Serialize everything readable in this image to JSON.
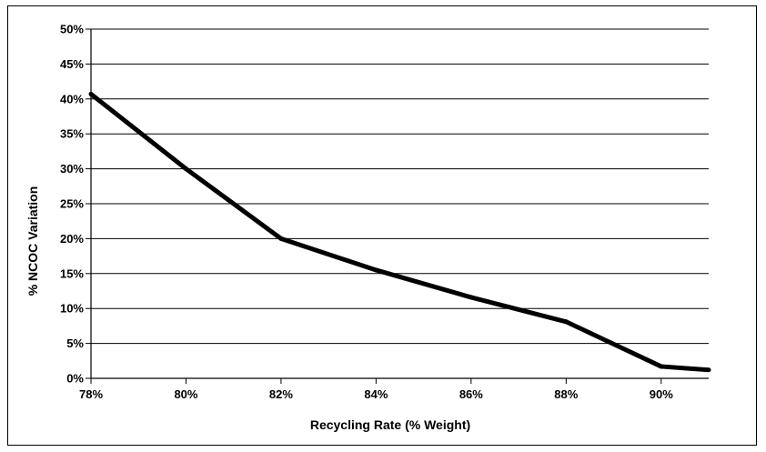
{
  "chart_data": {
    "type": "line",
    "title": "",
    "xlabel": "Recycling Rate (% Weight)",
    "ylabel": "% NCOC Variation",
    "x_ticks": [
      "78%",
      "80%",
      "82%",
      "84%",
      "86%",
      "88%",
      "90%"
    ],
    "y_ticks": [
      "0%",
      "5%",
      "10%",
      "15%",
      "20%",
      "25%",
      "30%",
      "35%",
      "40%",
      "45%",
      "50%"
    ],
    "xlim": [
      78,
      91
    ],
    "ylim": [
      0,
      50
    ],
    "grid": "horizontal",
    "legend": "none",
    "series": [
      {
        "color": "#000000",
        "x": [
          78,
          80,
          82,
          84,
          86,
          88,
          90,
          91
        ],
        "y": [
          40.7,
          30,
          20,
          15.5,
          11.6,
          8.1,
          1.7,
          1.2
        ]
      }
    ]
  }
}
